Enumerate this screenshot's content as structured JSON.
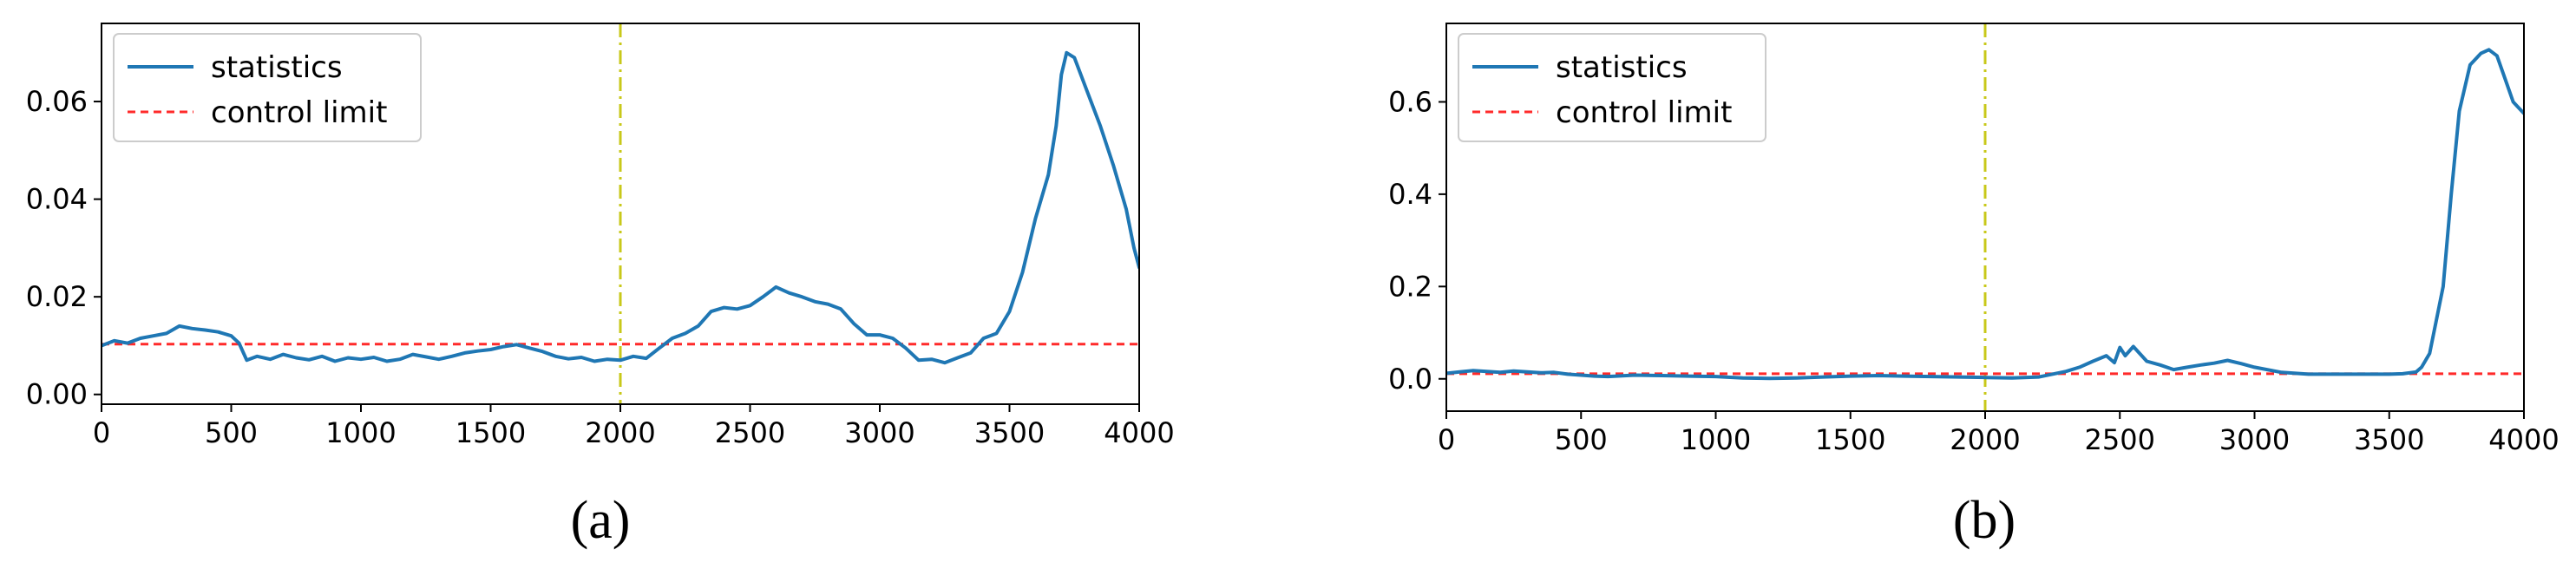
{
  "colors": {
    "statistics": "#1f77b4",
    "control_limit": "#ff2a2a",
    "change_point": "#c8c81a",
    "axes": "#000000"
  },
  "chart_data": [
    {
      "type": "line",
      "caption": "(a)",
      "xlim": [
        0,
        4000
      ],
      "ylim": [
        -0.002,
        0.076
      ],
      "xticks": [
        0,
        500,
        1000,
        1500,
        2000,
        2500,
        3000,
        3500,
        4000
      ],
      "xtick_labels": [
        "0",
        "500",
        "1000",
        "1500",
        "2000",
        "2500",
        "3000",
        "3500",
        "4000"
      ],
      "yticks": [
        0.0,
        0.02,
        0.04,
        0.06
      ],
      "ytick_labels": [
        "0.00",
        "0.02",
        "0.04",
        "0.06"
      ],
      "legend_position": "top-left",
      "grid": false,
      "change_point_x": 2000,
      "series": [
        {
          "name": "statistics",
          "style": "solid",
          "x": [
            0,
            50,
            100,
            150,
            200,
            250,
            300,
            350,
            400,
            450,
            500,
            530,
            560,
            600,
            650,
            700,
            750,
            800,
            850,
            900,
            950,
            1000,
            1050,
            1100,
            1150,
            1200,
            1250,
            1300,
            1350,
            1400,
            1450,
            1500,
            1550,
            1600,
            1650,
            1700,
            1750,
            1800,
            1850,
            1900,
            1950,
            2000,
            2050,
            2100,
            2150,
            2200,
            2250,
            2300,
            2350,
            2400,
            2450,
            2500,
            2550,
            2600,
            2650,
            2700,
            2750,
            2800,
            2850,
            2900,
            2950,
            3000,
            3050,
            3100,
            3150,
            3200,
            3250,
            3300,
            3350,
            3400,
            3450,
            3500,
            3550,
            3600,
            3650,
            3680,
            3700,
            3720,
            3750,
            3800,
            3850,
            3900,
            3950,
            3980,
            4000
          ],
          "y": [
            0.01,
            0.011,
            0.0105,
            0.0115,
            0.012,
            0.0125,
            0.014,
            0.0135,
            0.0132,
            0.0128,
            0.012,
            0.0105,
            0.007,
            0.0078,
            0.0072,
            0.0082,
            0.0075,
            0.0071,
            0.0078,
            0.0068,
            0.0075,
            0.0072,
            0.0076,
            0.0068,
            0.0072,
            0.0082,
            0.0077,
            0.0072,
            0.0078,
            0.0085,
            0.0089,
            0.0092,
            0.0098,
            0.0102,
            0.0095,
            0.0088,
            0.0078,
            0.0073,
            0.0076,
            0.0068,
            0.0072,
            0.007,
            0.0078,
            0.0074,
            0.0095,
            0.0115,
            0.0125,
            0.014,
            0.017,
            0.0178,
            0.0175,
            0.0182,
            0.02,
            0.022,
            0.0208,
            0.02,
            0.019,
            0.0185,
            0.0175,
            0.0145,
            0.0122,
            0.0122,
            0.0115,
            0.0095,
            0.007,
            0.0072,
            0.0065,
            0.0075,
            0.0085,
            0.0115,
            0.0125,
            0.017,
            0.025,
            0.036,
            0.045,
            0.055,
            0.0655,
            0.07,
            0.069,
            0.062,
            0.055,
            0.047,
            0.038,
            0.03,
            0.026
          ]
        },
        {
          "name": "control limit",
          "style": "dashed",
          "x": [
            0,
            4000
          ],
          "y": [
            0.0103,
            0.0103
          ]
        }
      ]
    },
    {
      "type": "line",
      "caption": "(b)",
      "xlim": [
        0,
        4000
      ],
      "ylim": [
        -0.07,
        0.77
      ],
      "xticks": [
        0,
        500,
        1000,
        1500,
        2000,
        2500,
        3000,
        3500,
        4000
      ],
      "xtick_labels": [
        "0",
        "500",
        "1000",
        "1500",
        "2000",
        "2500",
        "3000",
        "3500",
        "4000"
      ],
      "yticks": [
        0.0,
        0.2,
        0.4,
        0.6
      ],
      "ytick_labels": [
        "0.0",
        "0.2",
        "0.4",
        "0.6"
      ],
      "legend_position": "top-left",
      "grid": false,
      "change_point_x": 2000,
      "series": [
        {
          "name": "statistics",
          "style": "solid",
          "x": [
            0,
            50,
            100,
            150,
            200,
            250,
            300,
            350,
            400,
            450,
            500,
            550,
            600,
            700,
            800,
            900,
            1000,
            1100,
            1200,
            1300,
            1400,
            1500,
            1600,
            1700,
            1800,
            1900,
            2000,
            2100,
            2200,
            2300,
            2350,
            2400,
            2450,
            2480,
            2500,
            2520,
            2550,
            2600,
            2650,
            2700,
            2750,
            2800,
            2850,
            2900,
            2950,
            3000,
            3100,
            3200,
            3300,
            3400,
            3500,
            3550,
            3600,
            3620,
            3650,
            3700,
            3730,
            3760,
            3800,
            3840,
            3870,
            3900,
            3930,
            3960,
            4000
          ],
          "y": [
            0.012,
            0.015,
            0.018,
            0.016,
            0.014,
            0.017,
            0.015,
            0.013,
            0.014,
            0.01,
            0.008,
            0.006,
            0.005,
            0.008,
            0.007,
            0.006,
            0.005,
            0.002,
            0.001,
            0.002,
            0.004,
            0.006,
            0.007,
            0.006,
            0.005,
            0.004,
            0.003,
            0.002,
            0.004,
            0.016,
            0.025,
            0.038,
            0.05,
            0.035,
            0.068,
            0.05,
            0.07,
            0.038,
            0.03,
            0.02,
            0.025,
            0.03,
            0.034,
            0.04,
            0.033,
            0.025,
            0.014,
            0.01,
            0.01,
            0.01,
            0.01,
            0.011,
            0.015,
            0.025,
            0.055,
            0.2,
            0.4,
            0.58,
            0.68,
            0.705,
            0.713,
            0.7,
            0.65,
            0.6,
            0.575
          ]
        },
        {
          "name": "control limit",
          "style": "dashed",
          "x": [
            0,
            4000
          ],
          "y": [
            0.011,
            0.011
          ]
        }
      ]
    }
  ]
}
